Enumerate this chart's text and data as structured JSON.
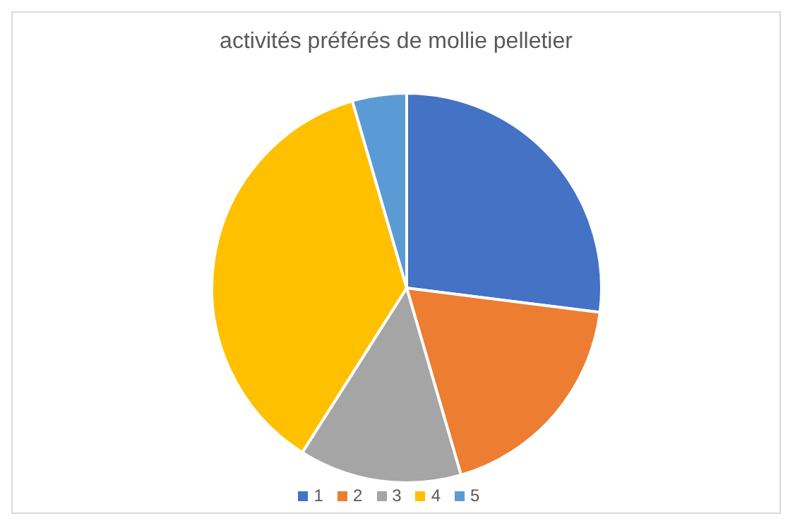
{
  "chart_data": {
    "type": "pie",
    "title": "activités préférés de mollie pelletier",
    "categories": [
      "1",
      "2",
      "3",
      "4",
      "5"
    ],
    "values": [
      27,
      18.5,
      13.5,
      36.5,
      4.5
    ],
    "colors": [
      "#4472c4",
      "#ed7d31",
      "#a5a5a5",
      "#ffc000",
      "#5b9bd5"
    ],
    "legend": "bottom"
  }
}
